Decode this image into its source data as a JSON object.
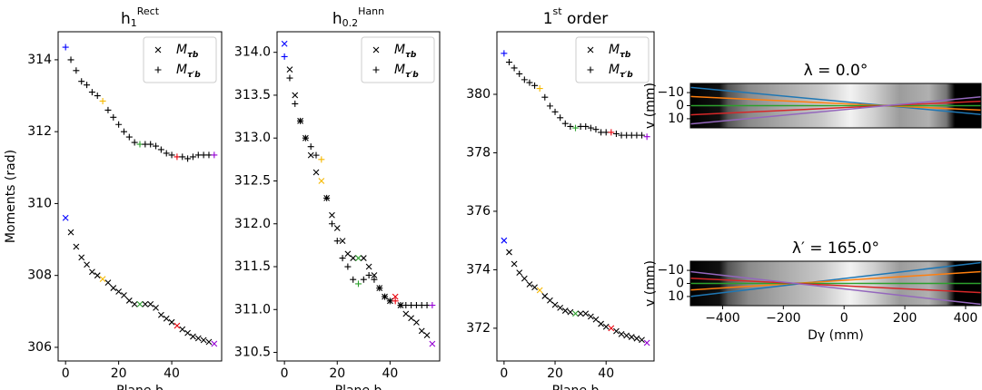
{
  "chart_data": [
    {
      "type": "scatter",
      "title": [
        {
          "text": "h"
        },
        {
          "text": "1",
          "sub": true
        },
        {
          "text": "Rect",
          "sup": true
        }
      ],
      "ylabel": "Moments (rad)",
      "xlabel": "Plane b",
      "xlim": [
        -2.8,
        58.8
      ],
      "xticks": [
        0,
        20,
        40
      ],
      "ylim": [
        305.62,
        314.78
      ],
      "yticks": [
        306,
        308,
        310,
        312,
        314
      ],
      "highlight_x": [
        0,
        14,
        28,
        42,
        56
      ],
      "highlight_colors": [
        "#0000ff",
        "#f5b800",
        "#2ca02c",
        "#e8000b",
        "#9400d3"
      ],
      "x": [
        0,
        2,
        4,
        6,
        8,
        10,
        12,
        14,
        16,
        18,
        20,
        22,
        24,
        26,
        28,
        30,
        32,
        34,
        36,
        38,
        40,
        42,
        44,
        46,
        48,
        50,
        52,
        54,
        56
      ],
      "series": [
        {
          "name": "M",
          "subscript": "τb",
          "marker": "x",
          "color": "#000000",
          "values": [
            309.6,
            309.2,
            308.8,
            308.5,
            308.3,
            308.1,
            308.0,
            307.9,
            307.8,
            307.65,
            307.55,
            307.45,
            307.3,
            307.2,
            307.2,
            307.2,
            307.2,
            307.1,
            306.9,
            306.8,
            306.7,
            306.6,
            306.5,
            306.4,
            306.3,
            306.25,
            306.2,
            306.15,
            306.1
          ]
        },
        {
          "name": "M",
          "subscript": "τ′b",
          "marker": "+",
          "color": "#000000",
          "values": [
            314.35,
            314.0,
            313.7,
            313.4,
            313.3,
            313.1,
            313.0,
            312.85,
            312.6,
            312.4,
            312.2,
            312.0,
            311.85,
            311.7,
            311.65,
            311.65,
            311.65,
            311.6,
            311.5,
            311.4,
            311.35,
            311.3,
            311.3,
            311.25,
            311.3,
            311.35,
            311.35,
            311.35,
            311.35
          ]
        }
      ]
    },
    {
      "type": "scatter",
      "title": [
        {
          "text": "h"
        },
        {
          "text": "0.2",
          "sub": true
        },
        {
          "text": "Hann",
          "sup": true
        }
      ],
      "xlabel": "Plane b",
      "xlim": [
        -2.8,
        58.8
      ],
      "xticks": [
        0,
        20,
        40
      ],
      "ylim": [
        310.4,
        314.24
      ],
      "yticks": [
        310.5,
        {
          "value": 311,
          "label": "311.0"
        },
        311.5,
        {
          "value": 312,
          "label": "312.0"
        },
        312.5,
        {
          "value": 313,
          "label": "313.0"
        },
        313.5,
        {
          "value": 314,
          "label": "314.0"
        }
      ],
      "highlight_x": [
        0,
        14,
        28,
        42,
        56
      ],
      "highlight_colors": [
        "#0000ff",
        "#f5b800",
        "#2ca02c",
        "#e8000b",
        "#9400d3"
      ],
      "x": [
        0,
        2,
        4,
        6,
        8,
        10,
        12,
        14,
        16,
        18,
        20,
        22,
        24,
        26,
        28,
        30,
        32,
        34,
        36,
        38,
        40,
        42,
        44,
        46,
        48,
        50,
        52,
        54,
        56
      ],
      "series": [
        {
          "name": "M",
          "subscript": "τb",
          "marker": "x",
          "color": "#000000",
          "values": [
            314.1,
            313.8,
            313.5,
            313.2,
            313.0,
            312.8,
            312.6,
            312.5,
            312.3,
            312.1,
            311.95,
            311.8,
            311.65,
            311.6,
            311.6,
            311.6,
            311.5,
            311.4,
            311.25,
            311.15,
            311.1,
            311.15,
            311.05,
            310.95,
            310.9,
            310.85,
            310.75,
            310.7,
            310.6
          ]
        },
        {
          "name": "M",
          "subscript": "τ′b",
          "marker": "+",
          "color": "#000000",
          "values": [
            313.95,
            313.7,
            313.4,
            313.2,
            313.0,
            312.9,
            312.8,
            312.75,
            312.3,
            312.0,
            311.8,
            311.6,
            311.5,
            311.35,
            311.3,
            311.35,
            311.4,
            311.35,
            311.25,
            311.15,
            311.1,
            311.1,
            311.05,
            311.05,
            311.05,
            311.05,
            311.05,
            311.05,
            311.05
          ]
        }
      ]
    },
    {
      "type": "scatter",
      "title": [
        {
          "text": "1"
        },
        {
          "text": "st",
          "sup": true
        },
        {
          "text": " order"
        }
      ],
      "xlabel": "Plane b",
      "xlim": [
        -2.8,
        58.8
      ],
      "xticks": [
        0,
        20,
        40
      ],
      "ylim": [
        370.88,
        382.14
      ],
      "yticks": [
        372,
        374,
        376,
        378,
        380
      ],
      "highlight_x": [
        0,
        14,
        28,
        42,
        56
      ],
      "highlight_colors": [
        "#0000ff",
        "#f5b800",
        "#2ca02c",
        "#e8000b",
        "#9400d3"
      ],
      "x": [
        0,
        2,
        4,
        6,
        8,
        10,
        12,
        14,
        16,
        18,
        20,
        22,
        24,
        26,
        28,
        30,
        32,
        34,
        36,
        38,
        40,
        42,
        44,
        46,
        48,
        50,
        52,
        54,
        56
      ],
      "series": [
        {
          "name": "M",
          "subscript": "τb",
          "marker": "x",
          "color": "#000000",
          "values": [
            375.0,
            374.6,
            374.2,
            373.9,
            373.7,
            373.5,
            373.4,
            373.3,
            373.1,
            372.95,
            372.8,
            372.7,
            372.6,
            372.55,
            372.5,
            372.5,
            372.5,
            372.4,
            372.3,
            372.15,
            372.05,
            372.0,
            371.9,
            371.8,
            371.75,
            371.7,
            371.65,
            371.6,
            371.5
          ]
        },
        {
          "name": "M",
          "subscript": "τ′b",
          "marker": "+",
          "color": "#000000",
          "values": [
            381.4,
            381.1,
            380.9,
            380.7,
            380.5,
            380.4,
            380.3,
            380.2,
            379.9,
            379.6,
            379.4,
            379.2,
            379.0,
            378.9,
            378.85,
            378.9,
            378.9,
            378.85,
            378.8,
            378.7,
            378.7,
            378.7,
            378.65,
            378.6,
            378.6,
            378.6,
            378.6,
            378.6,
            378.55
          ]
        }
      ]
    },
    {
      "type": "image",
      "title": [
        {
          "text": "λ = 0.0°"
        }
      ],
      "ylabel": "v (mm)",
      "xlim": [
        -506,
        451
      ],
      "ylim": [
        17,
        -17
      ],
      "yticks": [
        {
          "value": -10,
          "label": "−10"
        },
        0,
        10
      ],
      "series": [
        {
          "color": "#1f77b4",
          "x": [
            -506,
            451
          ],
          "values": [
            -14,
            6.8
          ]
        },
        {
          "color": "#ff7f0e",
          "x": [
            -506,
            451
          ],
          "values": [
            -7,
            3.4
          ]
        },
        {
          "color": "#2ca02c",
          "x": [
            -506,
            451
          ],
          "values": [
            0,
            0
          ]
        },
        {
          "color": "#d62728",
          "x": [
            -506,
            451
          ],
          "values": [
            7,
            -3.4
          ]
        },
        {
          "color": "#9467bd",
          "x": [
            -506,
            451
          ],
          "values": [
            14,
            -6.8
          ]
        }
      ]
    },
    {
      "type": "image",
      "title": [
        {
          "text": "λ′ = 165.0°"
        }
      ],
      "ylabel": "v (mm)",
      "xlabel": "Dγ (mm)",
      "xlim": [
        -506,
        451
      ],
      "ylim": [
        17,
        -17
      ],
      "yticks": [
        {
          "value": -10,
          "label": "−10"
        },
        0,
        10
      ],
      "xticks": [
        {
          "value": -400,
          "label": "−400"
        },
        {
          "value": -200,
          "label": "−200"
        },
        0,
        200,
        400
      ],
      "series": [
        {
          "color": "#1f77b4",
          "x": [
            -506,
            451
          ],
          "values": [
            10,
            -16
          ]
        },
        {
          "color": "#ff7f0e",
          "x": [
            -506,
            451
          ],
          "values": [
            5,
            -9
          ]
        },
        {
          "color": "#2ca02c",
          "x": [
            -506,
            451
          ],
          "values": [
            0,
            0
          ]
        },
        {
          "color": "#d62728",
          "x": [
            -506,
            451
          ],
          "values": [
            -4,
            7
          ]
        },
        {
          "color": "#9467bd",
          "x": [
            -506,
            451
          ],
          "values": [
            -9,
            16
          ]
        }
      ]
    }
  ]
}
